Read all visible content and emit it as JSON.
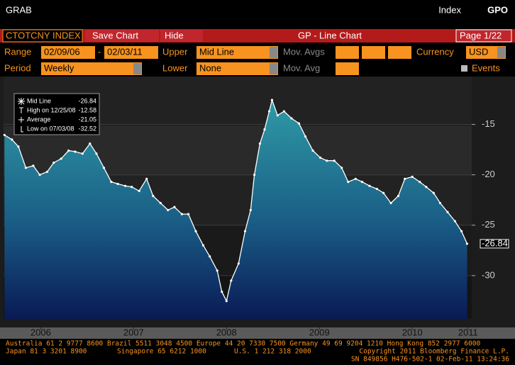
{
  "header": {
    "left": "GRAB",
    "right_label": "Index",
    "right_code": "GPO"
  },
  "toolbar": {
    "ticker": "CTOTCNY INDEX",
    "buttons": [
      "Save Chart",
      "Hide"
    ],
    "title": "GP - Line Chart",
    "page": "Page 1/22"
  },
  "form": {
    "range_label": "Range",
    "start": "02/09/06",
    "dash": "-",
    "end": "02/03/11",
    "upper_label": "Upper",
    "upper": "Mid Line",
    "movavgs_label": "Mov. Avgs",
    "currency_label": "Currency",
    "currency": "USD",
    "period_label": "Period",
    "period": "Weekly",
    "lower_label": "Lower",
    "lower": "None",
    "movavg_label": "Mov. Avg",
    "events": "Events"
  },
  "chart_data": {
    "type": "line",
    "x": [
      2006.11,
      2006.19,
      2006.26,
      2006.34,
      2006.42,
      2006.49,
      2006.57,
      2006.64,
      2006.72,
      2006.8,
      2006.87,
      2006.95,
      2007.03,
      2007.1,
      2007.18,
      2007.26,
      2007.33,
      2007.41,
      2007.48,
      2007.56,
      2007.64,
      2007.71,
      2007.79,
      2007.87,
      2007.94,
      2008.02,
      2008.09,
      2008.17,
      2008.25,
      2008.32,
      2008.4,
      2008.45,
      2008.5,
      2008.55,
      2008.63,
      2008.7,
      2008.76,
      2008.8,
      2008.86,
      2008.91,
      2008.96,
      2008.99,
      2009.05,
      2009.12,
      2009.2,
      2009.28,
      2009.35,
      2009.43,
      2009.51,
      2009.58,
      2009.66,
      2009.74,
      2009.81,
      2009.89,
      2009.96,
      2010.04,
      2010.12,
      2010.19,
      2010.27,
      2010.35,
      2010.42,
      2010.5,
      2010.58,
      2010.65,
      2010.73,
      2010.8,
      2010.88,
      2010.96,
      2011.03,
      2011.09
    ],
    "series": [
      {
        "name": "Mid Line",
        "color": "#ffffff",
        "values": [
          -16.05,
          -16.5,
          -17.2,
          -19.3,
          -19.1,
          -20.0,
          -19.7,
          -18.8,
          -18.4,
          -17.6,
          -17.7,
          -17.9,
          -16.9,
          -17.9,
          -19.3,
          -20.7,
          -20.9,
          -21.1,
          -21.2,
          -21.6,
          -20.4,
          -22.1,
          -22.8,
          -23.5,
          -23.2,
          -23.9,
          -23.9,
          -25.6,
          -27.0,
          -28.1,
          -29.5,
          -31.6,
          -32.52,
          -30.5,
          -28.8,
          -25.6,
          -23.5,
          -20.0,
          -16.9,
          -15.5,
          -13.7,
          -12.58,
          -14.1,
          -13.7,
          -14.4,
          -14.9,
          -16.2,
          -17.6,
          -18.3,
          -18.6,
          -18.6,
          -19.3,
          -20.7,
          -20.4,
          -20.7,
          -21.1,
          -21.4,
          -21.8,
          -22.8,
          -22.1,
          -20.4,
          -20.2,
          -20.7,
          -21.2,
          -21.8,
          -22.8,
          -23.7,
          -24.6,
          -25.6,
          -26.84
        ]
      }
    ],
    "stats": [
      {
        "label": "High on 12/25/08",
        "value": -12.58
      },
      {
        "label": "Average",
        "value": -21.05
      },
      {
        "label": "Low on 07/03/08",
        "value": -32.52
      }
    ],
    "xlim": [
      2006.1,
      2011.14
    ],
    "xticks": [
      {
        "value": 2006.5,
        "label": "2006"
      },
      {
        "value": 2007.5,
        "label": "2007"
      },
      {
        "value": 2008.5,
        "label": "2008"
      },
      {
        "value": 2009.5,
        "label": "2009"
      },
      {
        "value": 2010.5,
        "label": "2010"
      },
      {
        "value": 2011.1,
        "label": "2011"
      }
    ],
    "ylim": [
      -34.3,
      -10.25
    ],
    "yticks": [
      -30,
      -25,
      -20,
      -15
    ],
    "grid": true
  },
  "footer": [
    "Australia 61 2 9777 8600 Brazil 5511 3048 4500 Europe 44 20 7330 7500 Germany 49 69 9204 1210 Hong Kong 852 2977 6000",
    "Japan 81 3 3201 8900",
    "Singapore 65 6212 1000",
    "U.S. 1 212 318 2000",
    "Copyright 2011 Bloomberg Finance L.P.",
    "SN 849856 H476-502-1 02-Feb-11 13:24:36"
  ]
}
